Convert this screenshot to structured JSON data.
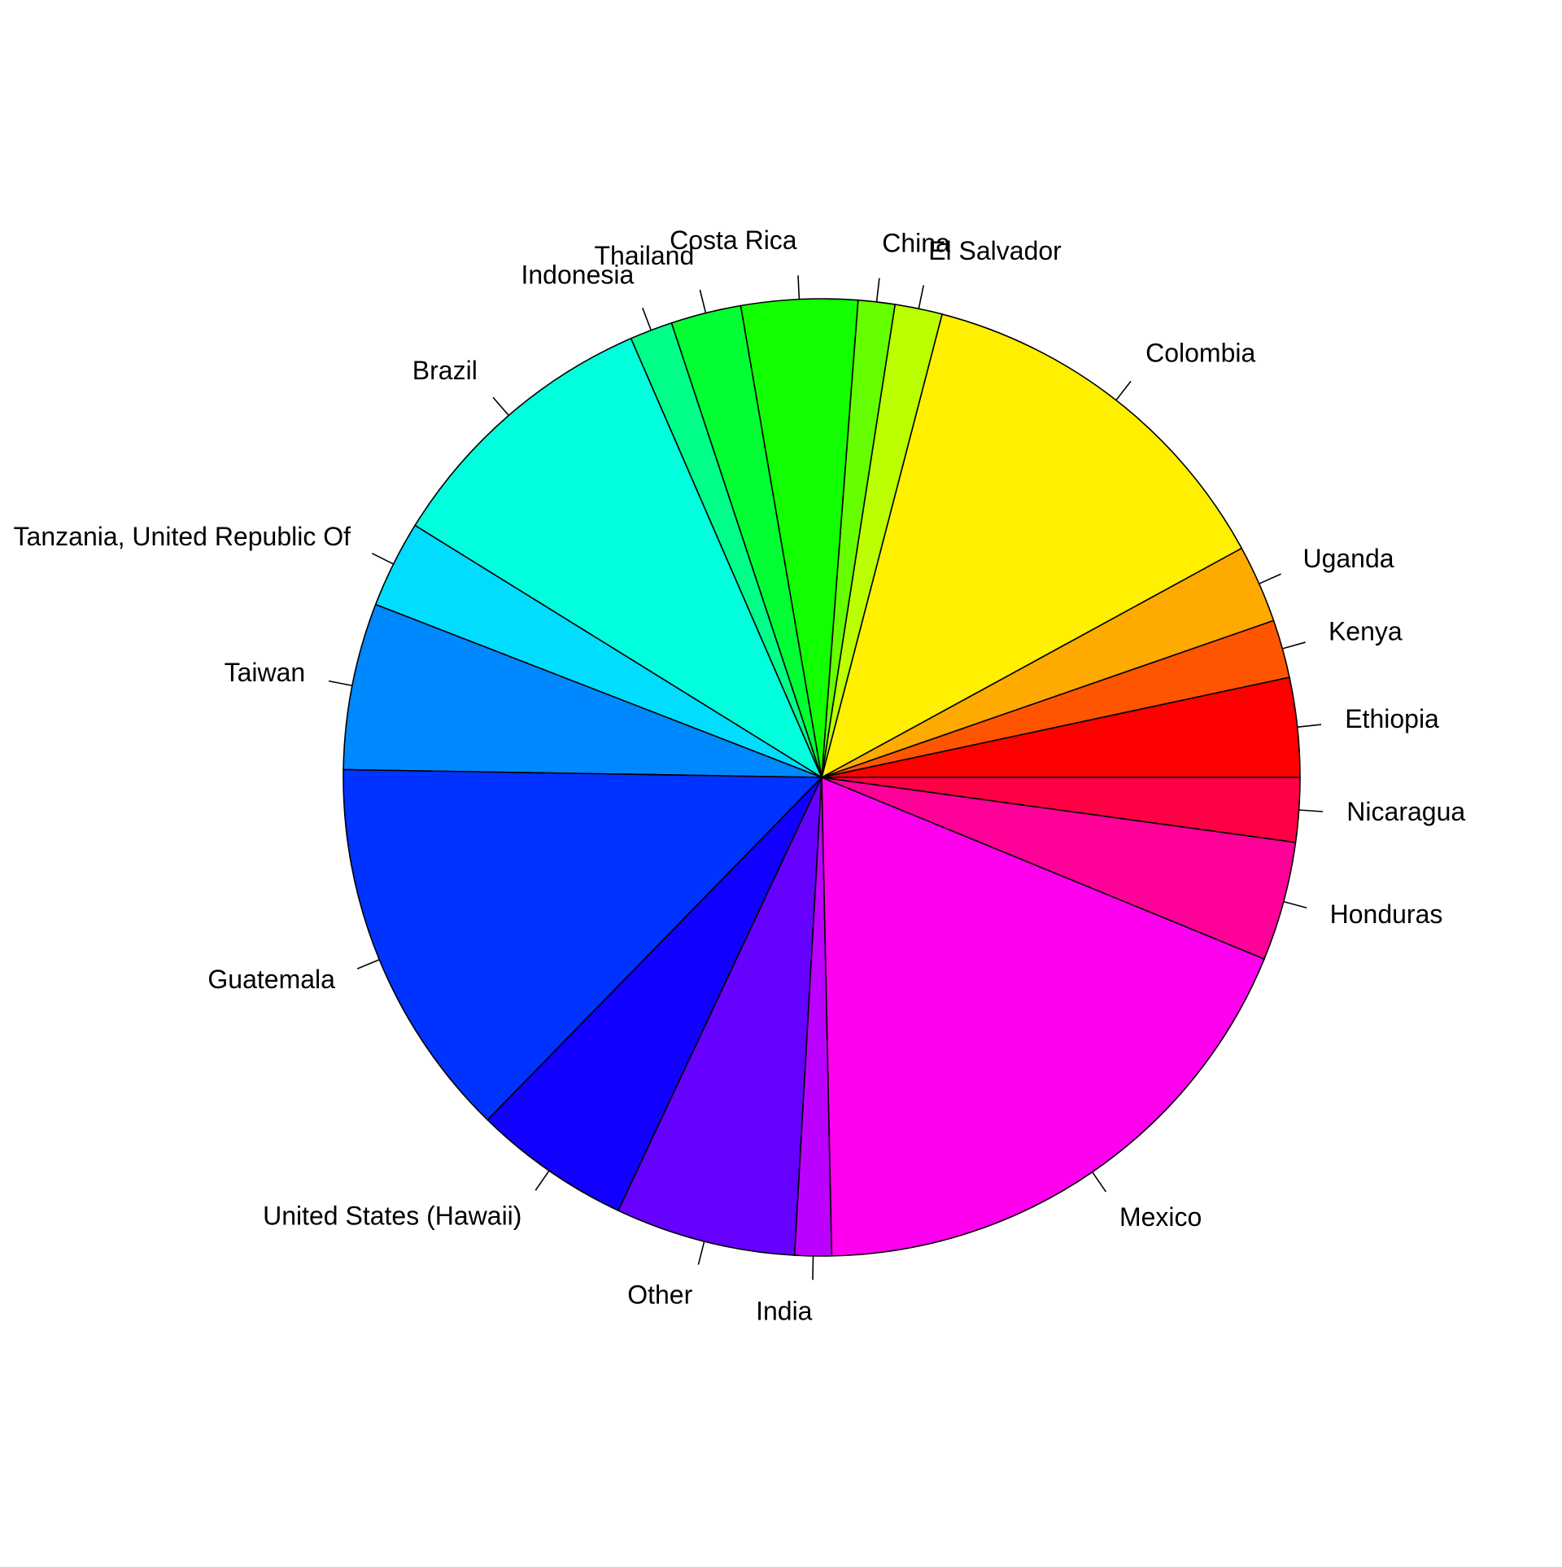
{
  "chart_data": {
    "type": "pie",
    "start": "counter-clockwise from 3 o'clock",
    "title": "",
    "slices": [
      {
        "label": "Ethiopia",
        "value": 6.5,
        "color": "#FF0000"
      },
      {
        "label": "Kenya",
        "value": 3.8,
        "color": "#FF5500"
      },
      {
        "label": "Uganda",
        "value": 5.1,
        "color": "#FFAA00"
      },
      {
        "label": "Colombia",
        "value": 25.2,
        "color": "#FFF000"
      },
      {
        "label": "El Salvador",
        "value": 3.1,
        "color": "#BBFF00"
      },
      {
        "label": "China",
        "value": 2.4,
        "color": "#66FF00"
      },
      {
        "label": "Costa Rica",
        "value": 7.6,
        "color": "#11FF00"
      },
      {
        "label": "Thailand",
        "value": 4.6,
        "color": "#00FF33"
      },
      {
        "label": "Indonesia",
        "value": 2.8,
        "color": "#00FF88"
      },
      {
        "label": "Brazil",
        "value": 18.7,
        "color": "#00FFDD"
      },
      {
        "label": "Tanzania, United Republic Of",
        "value": 5.7,
        "color": "#00DDFF"
      },
      {
        "label": "Taiwan",
        "value": 10.9,
        "color": "#0088FF"
      },
      {
        "label": "Guatemala",
        "value": 25.1,
        "color": "#0033FF"
      },
      {
        "label": "United States (Hawaii)",
        "value": 10.3,
        "color": "#1100FF"
      },
      {
        "label": "Other",
        "value": 11.8,
        "color": "#6600FF"
      },
      {
        "label": "India",
        "value": 2.4,
        "color": "#BB00FF"
      },
      {
        "label": "Mexico",
        "value": 35.8,
        "color": "#FF00EE"
      },
      {
        "label": "Honduras",
        "value": 7.8,
        "color": "#FF0099"
      },
      {
        "label": "Nicaragua",
        "value": 4.2,
        "color": "#FF0044"
      }
    ]
  }
}
